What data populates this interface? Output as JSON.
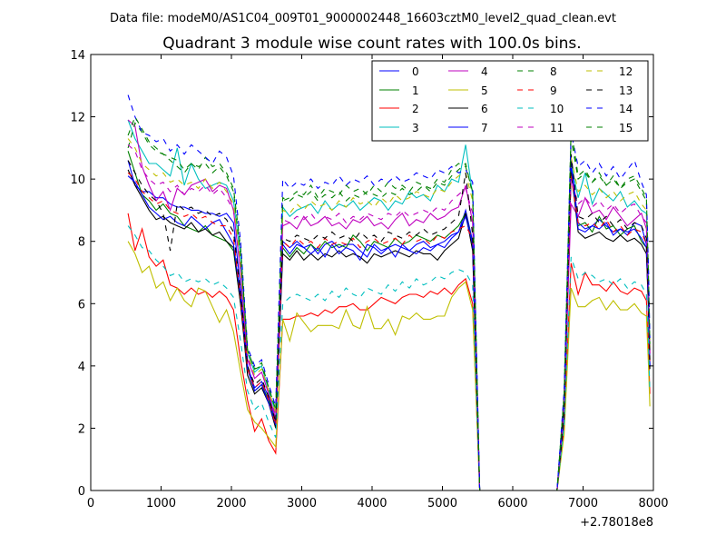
{
  "suptitle": "Data file: modeM0/AS1C04_009T01_9000002448_16603cztM0_level2_quad_clean.evt",
  "chart_data": {
    "type": "line",
    "title": "Quadrant 3 module wise count rates with 100.0s bins.",
    "xlabel": "",
    "ylabel": "",
    "xlim": [
      0,
      8000
    ],
    "ylim": [
      0,
      14
    ],
    "x_offset_label": "+2.78018e8",
    "x_ticks": [
      "0",
      "1000",
      "2000",
      "3000",
      "4000",
      "5000",
      "6000",
      "7000",
      "8000"
    ],
    "y_ticks": [
      "0",
      "2",
      "4",
      "6",
      "8",
      "10",
      "12",
      "14"
    ],
    "grid": false,
    "legend_position": "top-right",
    "x": [
      530,
      630,
      730,
      830,
      930,
      1030,
      1130,
      1230,
      1330,
      1430,
      1530,
      1630,
      1730,
      1830,
      1930,
      2030,
      2130,
      2230,
      2330,
      2430,
      2530,
      2630,
      2730,
      2830,
      2930,
      3030,
      3130,
      3230,
      3330,
      3430,
      3530,
      3630,
      3730,
      3830,
      3930,
      4030,
      4130,
      4230,
      4330,
      4430,
      4530,
      4630,
      4730,
      4830,
      4930,
      5030,
      5130,
      5230,
      5330,
      5430,
      5530,
      6630,
      6730,
      6830,
      6930,
      7030,
      7130,
      7230,
      7330,
      7430,
      7530,
      7630,
      7730,
      7830,
      7900,
      7930,
      7950
    ],
    "series": [
      {
        "name": "0",
        "color": "#0000ff",
        "style": "solid",
        "values": [
          10.6,
          9.8,
          9.6,
          9.6,
          9.4,
          9.4,
          9.2,
          9.1,
          9.1,
          9.0,
          9.0,
          8.9,
          8.9,
          8.8,
          8.9,
          8.6,
          6.5,
          4.0,
          3.3,
          3.5,
          3.0,
          2.2,
          8.0,
          7.8,
          8.0,
          7.8,
          7.9,
          7.6,
          7.9,
          8.0,
          7.8,
          7.9,
          7.9,
          7.7,
          7.5,
          7.9,
          7.7,
          7.8,
          7.9,
          7.8,
          7.7,
          7.9,
          8.0,
          7.8,
          7.9,
          8.0,
          8.2,
          8.3,
          9.0,
          8.0,
          0,
          0,
          2.5,
          10.6,
          8.6,
          8.4,
          8.5,
          8.7,
          8.5,
          8.3,
          8.4,
          8.2,
          8.6,
          8.5,
          7.9,
          6.0,
          4.0
        ]
      },
      {
        "name": "1",
        "color": "#008000",
        "style": "solid",
        "values": [
          10.9,
          10.2,
          9.5,
          9.3,
          9.0,
          9.2,
          8.9,
          8.8,
          8.5,
          8.4,
          8.3,
          8.5,
          8.2,
          8.1,
          8.0,
          7.7,
          6.0,
          3.9,
          3.2,
          3.4,
          2.9,
          2.1,
          7.8,
          7.5,
          7.8,
          7.6,
          7.9,
          7.7,
          8.0,
          7.8,
          7.9,
          7.8,
          8.2,
          8.0,
          7.7,
          8.0,
          7.9,
          7.8,
          8.1,
          7.9,
          8.0,
          8.2,
          8.1,
          8.0,
          8.2,
          8.1,
          8.3,
          8.5,
          8.9,
          7.9,
          0,
          0,
          2.4,
          10.2,
          8.5,
          8.6,
          8.3,
          8.8,
          8.4,
          8.5,
          8.2,
          8.4,
          8.5,
          8.0,
          7.8,
          5.9,
          4.0
        ]
      },
      {
        "name": "2",
        "color": "#ff0000",
        "style": "solid",
        "values": [
          8.9,
          7.7,
          8.4,
          7.5,
          7.2,
          7.4,
          6.6,
          6.5,
          6.3,
          6.5,
          6.3,
          6.4,
          6.2,
          6.4,
          6.2,
          5.8,
          4.2,
          2.9,
          1.9,
          2.3,
          1.6,
          1.2,
          5.5,
          5.5,
          5.6,
          5.6,
          5.7,
          5.6,
          5.8,
          5.7,
          5.9,
          5.9,
          6.0,
          5.8,
          5.8,
          6.0,
          6.2,
          6.1,
          6.0,
          6.2,
          6.3,
          6.3,
          6.2,
          6.4,
          6.3,
          6.5,
          6.3,
          6.6,
          6.8,
          6.0,
          0,
          0,
          2.0,
          7.3,
          6.3,
          7.0,
          6.6,
          6.6,
          6.4,
          6.7,
          6.4,
          6.3,
          6.5,
          6.4,
          6.1,
          4.5,
          3.1
        ]
      },
      {
        "name": "3",
        "color": "#00bfbf",
        "style": "solid",
        "values": [
          11.9,
          11.3,
          10.9,
          10.5,
          10.5,
          10.3,
          10.1,
          11.0,
          9.8,
          10.5,
          10.0,
          9.7,
          9.8,
          9.9,
          9.8,
          9.3,
          7.5,
          4.4,
          3.8,
          4.0,
          3.2,
          2.5,
          9.1,
          8.8,
          9.0,
          9.1,
          9.2,
          8.9,
          9.3,
          9.0,
          9.2,
          9.1,
          9.3,
          9.0,
          9.2,
          9.4,
          9.3,
          9.0,
          9.3,
          9.2,
          9.6,
          9.4,
          9.5,
          9.3,
          9.8,
          9.6,
          10.0,
          9.9,
          11.1,
          9.5,
          0,
          0,
          3.0,
          10.5,
          9.4,
          10.2,
          9.2,
          9.7,
          9.5,
          9.3,
          9.6,
          9.1,
          9.3,
          9.0,
          8.9,
          6.5,
          4.5
        ]
      },
      {
        "name": "4",
        "color": "#bf00bf",
        "style": "solid",
        "values": [
          11.9,
          11.7,
          10.4,
          9.8,
          9.3,
          9.6,
          9.0,
          9.7,
          9.5,
          9.8,
          9.9,
          10.0,
          9.6,
          9.8,
          9.7,
          9.0,
          7.0,
          4.2,
          3.6,
          3.8,
          3.1,
          2.3,
          8.5,
          8.6,
          8.4,
          8.8,
          8.5,
          8.6,
          8.8,
          8.5,
          8.6,
          8.4,
          8.7,
          8.6,
          8.8,
          8.5,
          8.6,
          8.4,
          8.7,
          8.9,
          8.5,
          8.7,
          8.6,
          8.9,
          8.7,
          8.8,
          9.0,
          9.1,
          9.8,
          8.6,
          0,
          0,
          2.6,
          9.2,
          8.8,
          9.4,
          8.9,
          9.0,
          8.7,
          9.1,
          8.8,
          8.5,
          8.7,
          8.9,
          8.4,
          6.3,
          4.4
        ]
      },
      {
        "name": "5",
        "color": "#bfbf00",
        "style": "solid",
        "values": [
          8.0,
          7.6,
          7.0,
          7.2,
          6.5,
          6.7,
          6.1,
          6.5,
          6.1,
          5.9,
          6.5,
          6.4,
          5.9,
          5.4,
          5.8,
          5.1,
          3.8,
          2.6,
          2.2,
          2.0,
          1.7,
          1.4,
          5.5,
          4.8,
          5.7,
          5.4,
          5.1,
          5.3,
          5.3,
          5.3,
          5.2,
          5.8,
          5.3,
          5.2,
          5.9,
          5.2,
          5.2,
          5.5,
          5.0,
          5.6,
          5.5,
          5.7,
          5.5,
          5.5,
          5.6,
          5.6,
          6.2,
          6.5,
          6.7,
          5.8,
          0,
          0,
          1.8,
          6.5,
          5.9,
          5.9,
          6.1,
          6.2,
          5.8,
          6.1,
          5.8,
          5.8,
          6.0,
          5.7,
          5.6,
          4.0,
          2.7
        ]
      },
      {
        "name": "6",
        "color": "#000000",
        "style": "solid",
        "values": [
          10.3,
          9.8,
          9.4,
          9.0,
          8.7,
          8.8,
          8.6,
          8.5,
          8.4,
          8.6,
          8.3,
          8.4,
          8.2,
          8.3,
          8.0,
          7.8,
          6.0,
          3.7,
          3.1,
          3.3,
          2.8,
          2.0,
          7.6,
          7.4,
          7.7,
          7.4,
          7.6,
          7.4,
          7.6,
          7.5,
          7.7,
          7.5,
          7.6,
          7.5,
          7.3,
          7.6,
          7.5,
          7.6,
          7.7,
          7.6,
          7.5,
          7.7,
          7.6,
          7.6,
          7.4,
          7.7,
          7.9,
          8.1,
          8.9,
          7.7,
          0,
          0,
          2.3,
          10.3,
          8.3,
          8.1,
          8.2,
          8.3,
          8.1,
          8.0,
          8.2,
          8.0,
          8.1,
          7.9,
          7.6,
          5.8,
          3.9
        ]
      },
      {
        "name": "7",
        "color": "#0000ff",
        "style": "solid",
        "values": [
          10.1,
          9.9,
          9.5,
          9.1,
          8.9,
          8.7,
          8.8,
          8.6,
          8.5,
          8.8,
          8.6,
          8.4,
          8.6,
          8.7,
          8.3,
          7.9,
          6.2,
          3.9,
          3.2,
          3.4,
          2.8,
          2.1,
          7.9,
          7.6,
          7.9,
          7.8,
          7.6,
          7.8,
          7.5,
          7.9,
          7.6,
          7.8,
          7.7,
          7.4,
          7.9,
          7.8,
          7.6,
          7.8,
          7.5,
          7.9,
          7.7,
          7.6,
          7.8,
          7.7,
          7.9,
          7.8,
          8.1,
          8.3,
          8.8,
          7.9,
          0,
          0,
          2.4,
          10.5,
          8.4,
          8.3,
          8.5,
          8.4,
          8.6,
          8.2,
          8.4,
          8.3,
          8.4,
          8.1,
          7.8,
          5.9,
          4.0
        ]
      },
      {
        "name": "8",
        "color": "#008000",
        "style": "dashed",
        "values": [
          11.0,
          11.8,
          11.5,
          11.1,
          10.9,
          10.8,
          10.6,
          10.4,
          10.2,
          10.5,
          10.3,
          10.7,
          10.4,
          10.5,
          10.2,
          9.7,
          7.8,
          4.5,
          3.9,
          4.1,
          3.3,
          2.6,
          9.3,
          9.4,
          9.6,
          9.5,
          9.8,
          9.4,
          9.7,
          9.6,
          9.5,
          9.8,
          9.6,
          9.7,
          9.5,
          9.8,
          9.6,
          9.9,
          9.7,
          9.8,
          9.6,
          9.9,
          9.8,
          9.7,
          10.0,
          9.9,
          10.3,
          10.5,
          10.4,
          9.6,
          0,
          0,
          3.1,
          11.3,
          10.0,
          10.2,
          9.9,
          10.1,
          9.8,
          10.0,
          9.7,
          9.9,
          10.0,
          9.6,
          9.3,
          7.0,
          4.8
        ]
      },
      {
        "name": "9",
        "color": "#ff0000",
        "style": "dashed",
        "values": [
          10.2,
          10.0,
          9.6,
          9.4,
          9.2,
          9.3,
          9.0,
          8.9,
          8.8,
          8.9,
          8.7,
          8.8,
          8.6,
          8.5,
          8.5,
          8.1,
          6.2,
          3.9,
          3.3,
          3.5,
          2.9,
          2.1,
          8.0,
          7.8,
          8.1,
          7.9,
          8.0,
          7.8,
          8.1,
          7.9,
          8.0,
          7.9,
          8.1,
          7.8,
          8.0,
          8.1,
          7.9,
          8.0,
          8.1,
          7.9,
          8.2,
          8.0,
          8.1,
          7.9,
          8.2,
          8.1,
          8.3,
          8.4,
          8.5,
          8.1,
          0,
          0,
          2.5,
          10.1,
          8.6,
          8.5,
          8.6,
          8.4,
          8.7,
          8.3,
          8.5,
          8.2,
          8.4,
          8.3,
          7.9,
          6.0,
          4.1
        ]
      },
      {
        "name": "10",
        "color": "#00bfbf",
        "style": "dashed",
        "values": [
          8.5,
          8.2,
          7.8,
          7.7,
          7.4,
          7.2,
          6.9,
          7.0,
          6.7,
          6.8,
          6.7,
          6.8,
          6.6,
          6.7,
          6.5,
          6.2,
          4.8,
          3.2,
          2.6,
          2.8,
          2.2,
          1.7,
          6.0,
          6.2,
          6.3,
          6.2,
          6.1,
          6.3,
          6.1,
          6.4,
          6.2,
          6.5,
          6.3,
          6.2,
          6.5,
          6.4,
          6.3,
          6.6,
          6.4,
          6.7,
          6.5,
          6.8,
          6.6,
          6.7,
          6.9,
          6.8,
          7.0,
          7.1,
          7.0,
          6.6,
          0,
          0,
          2.1,
          7.5,
          6.8,
          7.0,
          6.9,
          6.7,
          6.8,
          6.6,
          6.8,
          6.5,
          6.7,
          6.6,
          6.3,
          4.7,
          3.2
        ]
      },
      {
        "name": "11",
        "color": "#bf00bf",
        "style": "dashed",
        "values": [
          11.1,
          10.9,
          10.3,
          10.0,
          9.8,
          9.9,
          9.6,
          9.8,
          9.5,
          9.7,
          9.6,
          9.8,
          9.5,
          9.7,
          9.4,
          9.0,
          7.1,
          4.3,
          3.6,
          3.8,
          3.1,
          2.4,
          8.7,
          8.6,
          8.8,
          8.7,
          8.9,
          8.6,
          8.8,
          8.7,
          8.9,
          8.6,
          8.8,
          8.7,
          8.9,
          8.8,
          8.7,
          8.9,
          8.8,
          9.0,
          8.8,
          8.9,
          9.0,
          8.9,
          9.1,
          9.0,
          9.3,
          9.5,
          9.7,
          8.9,
          0,
          0,
          2.7,
          10.0,
          9.2,
          9.4,
          9.1,
          9.3,
          9.0,
          9.2,
          8.9,
          9.1,
          9.2,
          8.8,
          8.6,
          6.4,
          4.4
        ]
      },
      {
        "name": "12",
        "color": "#bfbf00",
        "style": "dashed",
        "values": [
          11.3,
          11.0,
          10.5,
          10.3,
          10.1,
          10.2,
          9.9,
          10.0,
          9.8,
          9.9,
          9.7,
          10.0,
          9.7,
          9.9,
          9.6,
          9.2,
          7.3,
          4.4,
          3.7,
          3.9,
          3.2,
          2.5,
          9.0,
          8.9,
          9.2,
          9.0,
          9.3,
          9.1,
          9.2,
          9.0,
          9.3,
          9.1,
          9.4,
          9.2,
          9.3,
          9.1,
          9.4,
          9.2,
          9.5,
          9.3,
          9.4,
          9.6,
          9.5,
          9.4,
          9.7,
          9.6,
          9.9,
          10.1,
          10.2,
          9.3,
          0,
          0,
          2.9,
          10.7,
          9.6,
          9.8,
          9.5,
          9.7,
          9.4,
          9.6,
          9.3,
          9.5,
          9.6,
          9.2,
          9.0,
          6.7,
          4.6
        ]
      },
      {
        "name": "13",
        "color": "#000000",
        "style": "dashed",
        "values": [
          10.6,
          10.2,
          9.8,
          9.5,
          9.3,
          8.9,
          7.7,
          9.2,
          9.0,
          9.1,
          8.9,
          9.0,
          8.8,
          8.9,
          8.7,
          8.3,
          6.4,
          4.0,
          3.4,
          3.6,
          3.0,
          2.2,
          8.1,
          8.0,
          8.2,
          8.1,
          8.0,
          8.2,
          8.1,
          8.3,
          8.1,
          8.2,
          8.0,
          8.3,
          8.1,
          8.2,
          8.0,
          8.3,
          8.2,
          8.1,
          8.3,
          8.2,
          8.4,
          8.2,
          8.3,
          8.4,
          8.6,
          8.8,
          10.2,
          8.2,
          0,
          0,
          2.6,
          10.8,
          8.8,
          8.7,
          8.9,
          8.6,
          8.8,
          8.5,
          8.7,
          8.4,
          8.6,
          8.5,
          8.1,
          6.1,
          4.2
        ]
      },
      {
        "name": "14",
        "color": "#0000ff",
        "style": "dashed",
        "values": [
          12.7,
          12.0,
          11.5,
          11.4,
          11.2,
          11.3,
          10.9,
          11.1,
          10.8,
          11.1,
          10.9,
          10.7,
          10.5,
          10.9,
          10.7,
          10.1,
          8.0,
          4.6,
          4.0,
          4.2,
          3.4,
          2.7,
          10.0,
          9.7,
          9.9,
          9.8,
          10.0,
          9.7,
          9.9,
          9.8,
          10.1,
          9.8,
          10.0,
          9.9,
          10.1,
          9.8,
          10.0,
          9.9,
          10.1,
          9.9,
          10.0,
          10.2,
          10.1,
          10.0,
          10.3,
          10.2,
          10.4,
          10.2,
          10.3,
          9.9,
          0,
          0,
          3.2,
          11.5,
          10.4,
          10.6,
          10.2,
          10.5,
          10.1,
          10.4,
          10.0,
          10.3,
          10.6,
          9.9,
          9.5,
          7.1,
          4.9
        ]
      },
      {
        "name": "15",
        "color": "#008000",
        "style": "dashed",
        "values": [
          11.4,
          12.0,
          11.6,
          11.2,
          11.0,
          10.8,
          10.7,
          10.6,
          10.3,
          10.5,
          10.4,
          10.5,
          10.2,
          10.4,
          10.1,
          9.6,
          7.6,
          4.5,
          3.9,
          4.0,
          3.3,
          2.6,
          9.4,
          9.3,
          9.5,
          9.4,
          9.6,
          9.3,
          9.5,
          9.4,
          9.6,
          9.3,
          9.5,
          9.4,
          9.6,
          9.5,
          9.4,
          9.6,
          9.5,
          9.7,
          9.5,
          9.6,
          9.8,
          9.6,
          9.9,
          9.8,
          10.1,
          10.3,
          10.5,
          9.5,
          0,
          0,
          3.0,
          11.6,
          10.1,
          10.3,
          9.9,
          10.2,
          9.8,
          10.1,
          9.7,
          10.0,
          10.1,
          9.7,
          9.4,
          6.9,
          4.7
        ]
      }
    ]
  }
}
